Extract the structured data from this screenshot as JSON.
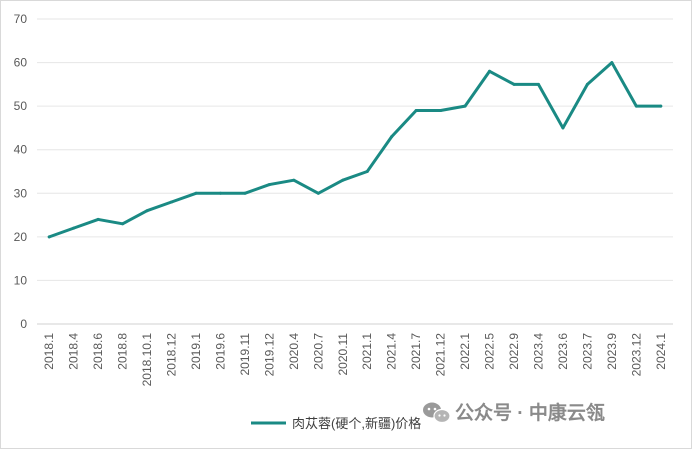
{
  "chart_data": {
    "type": "line",
    "title": "",
    "xlabel": "",
    "ylabel": "",
    "ylim": [
      0,
      70
    ],
    "yticks": [
      0,
      10,
      20,
      30,
      40,
      50,
      60,
      70
    ],
    "grid": true,
    "legend_position": "bottom",
    "categories": [
      "2018.1",
      "2018.4",
      "2018.6",
      "2018.8",
      "2018.10.1",
      "2018.12",
      "2019.1",
      "2019.6",
      "2019.11",
      "2019.12",
      "2020.4",
      "2020.7",
      "2020.11",
      "2021.1",
      "2021.4",
      "2021.7",
      "2021.12",
      "2022.1",
      "2022.5",
      "2022.9",
      "2023.4",
      "2023.6",
      "2023.7",
      "2023.9",
      "2023.12",
      "2024.1"
    ],
    "series": [
      {
        "name": "肉苁蓉(硬个,新疆)价格",
        "color": "#1a8a84",
        "values": [
          20,
          22,
          24,
          23,
          26,
          28,
          30,
          30,
          30,
          32,
          33,
          30,
          33,
          35,
          43,
          49,
          49,
          50,
          58,
          55,
          55,
          45,
          55,
          60,
          50,
          50
        ]
      }
    ]
  },
  "watermark": {
    "icon": "wechat-icon",
    "text": "公众号 · 中康云瓴"
  }
}
